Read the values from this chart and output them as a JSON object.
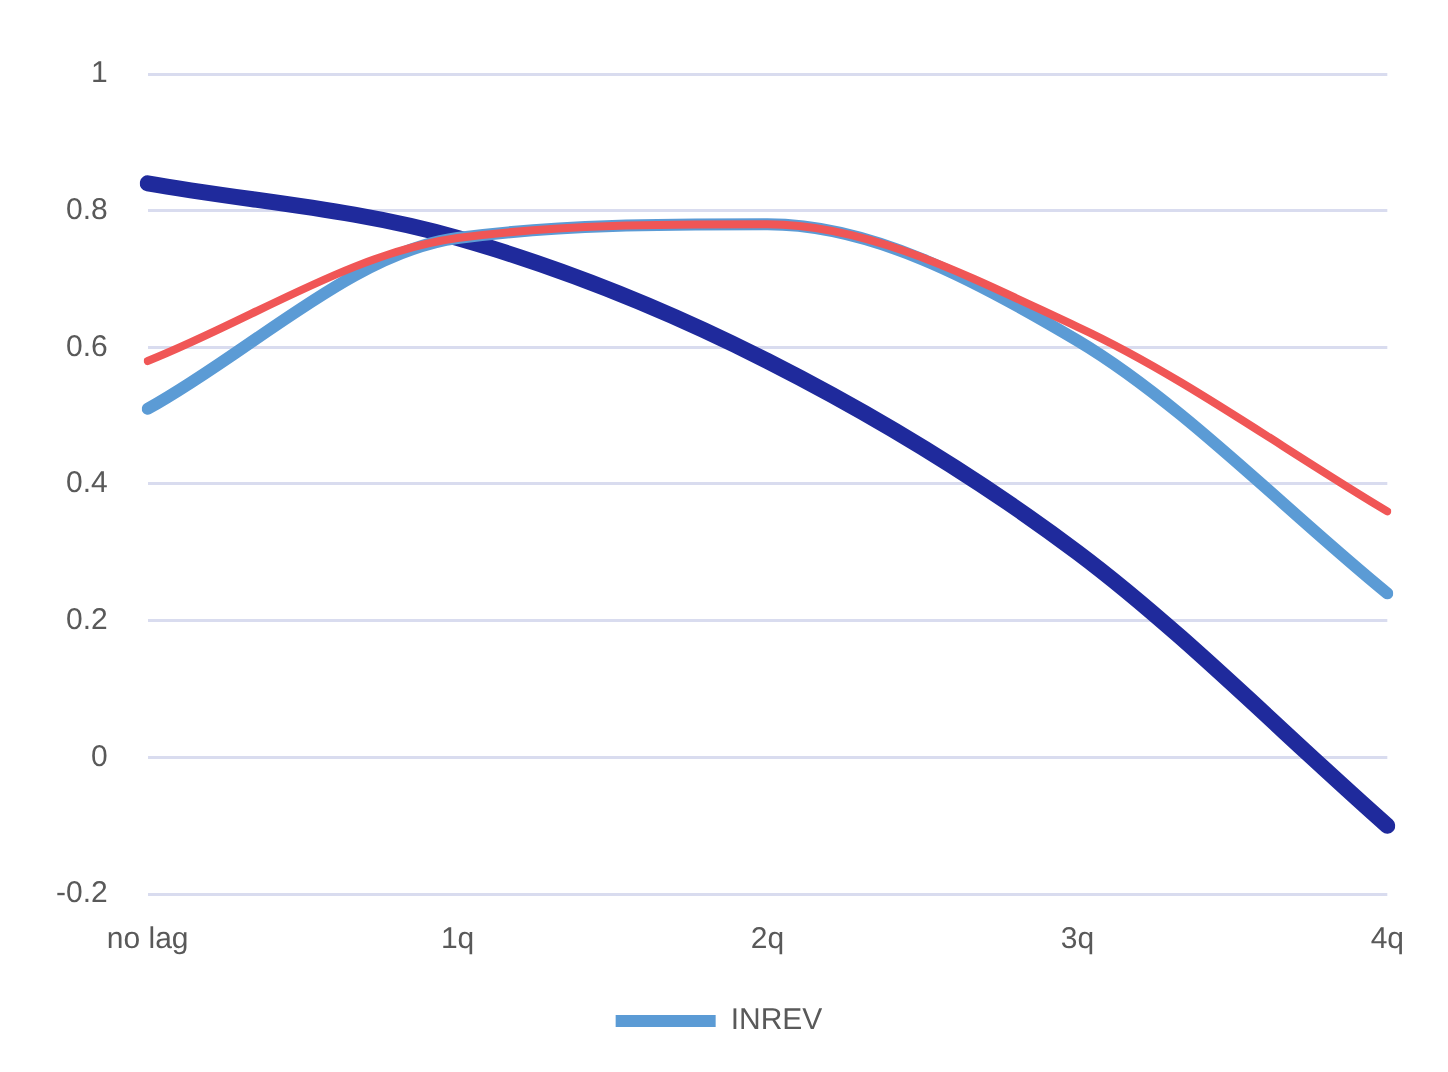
{
  "chart_data": {
    "type": "line",
    "categories": [
      "no lag",
      "1q",
      "2q",
      "3q",
      "4q"
    ],
    "series": [
      {
        "color": "#1f2a9c",
        "values": [
          0.84,
          0.76,
          0.58,
          0.3,
          -0.1
        ]
      },
      {
        "name": "INREV",
        "color": "#5b9bd5",
        "values": [
          0.51,
          0.76,
          0.78,
          0.61,
          0.24
        ]
      },
      {
        "color": "#f05656",
        "values": [
          0.58,
          0.76,
          0.78,
          0.63,
          0.36
        ]
      }
    ],
    "ylim": [
      -0.2,
      1
    ],
    "yticks": [
      -0.2,
      0,
      0.2,
      0.4,
      0.6,
      0.8,
      1
    ],
    "grid": "y",
    "legend": "bottom",
    "marker": "none"
  }
}
